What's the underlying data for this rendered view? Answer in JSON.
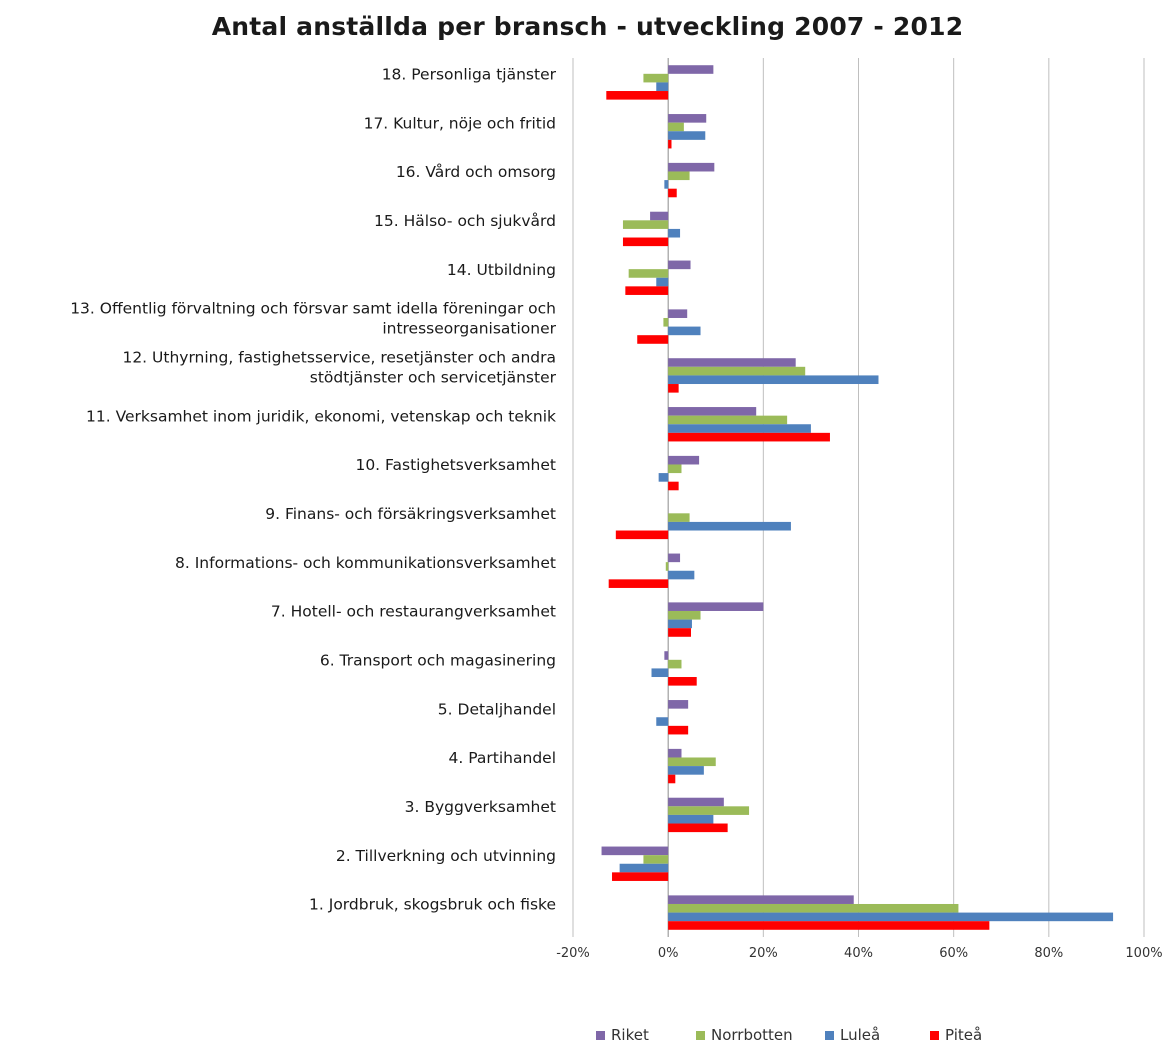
{
  "chart_data": {
    "type": "bar",
    "orientation": "horizontal",
    "title": "Antal anställda per bransch - utveckling 2007 - 2012",
    "xlabel": "",
    "ylabel": "",
    "xlim": [
      -0.2,
      1.0
    ],
    "x_ticks": [
      -0.2,
      0,
      0.2,
      0.4,
      0.6,
      0.8,
      1.0
    ],
    "x_tick_labels": [
      "-20%",
      "0%",
      "20%",
      "40%",
      "60%",
      "80%",
      "100%"
    ],
    "grid": "vertical",
    "legend_position": "bottom",
    "categories": [
      [
        "18. Personliga tjänster"
      ],
      [
        "17. Kultur, nöje och fritid"
      ],
      [
        "16. Vård och omsorg"
      ],
      [
        "15. Hälso- och sjukvård"
      ],
      [
        "14. Utbildning"
      ],
      [
        "13. Offentlig förvaltning och försvar samt idella föreningar och",
        "intresseorganisationer"
      ],
      [
        "12. Uthyrning, fastighetsservice, resetjänster och andra",
        "stödtjänster och servicetjänster"
      ],
      [
        "11. Verksamhet inom juridik, ekonomi, vetenskap och teknik"
      ],
      [
        "10. Fastighetsverksamhet"
      ],
      [
        "9. Finans- och försäkringsverksamhet"
      ],
      [
        "8. Informations- och kommunikationsverksamhet"
      ],
      [
        "7. Hotell- och restaurangverksamhet"
      ],
      [
        "6. Transport och magasinering"
      ],
      [
        "5. Detaljhandel"
      ],
      [
        "4. Partihandel"
      ],
      [
        "3. Byggverksamhet"
      ],
      [
        "2. Tillverkning och utvinning"
      ],
      [
        "1. Jordbruk, skogsbruk och fiske"
      ]
    ],
    "series": [
      {
        "name": "Riket",
        "color": "#7F67A8",
        "values": [
          0.095,
          0.08,
          0.097,
          -0.038,
          0.047,
          0.04,
          0.268,
          0.185,
          0.065,
          0.0,
          0.025,
          0.2,
          -0.008,
          0.042,
          0.028,
          0.117,
          -0.14,
          0.39
        ]
      },
      {
        "name": "Norrbotten",
        "color": "#9BBB59",
        "values": [
          -0.052,
          0.033,
          0.045,
          -0.095,
          -0.083,
          -0.01,
          0.288,
          0.25,
          0.028,
          0.045,
          -0.005,
          0.068,
          0.028,
          0.0,
          0.1,
          0.17,
          -0.052,
          0.61
        ]
      },
      {
        "name": "Luleå",
        "color": "#4F81BD",
        "values": [
          -0.025,
          0.078,
          -0.008,
          0.025,
          -0.025,
          0.068,
          0.442,
          0.3,
          -0.02,
          0.258,
          0.055,
          0.05,
          -0.035,
          -0.025,
          0.075,
          0.095,
          -0.102,
          0.935
        ]
      },
      {
        "name": "Piteå",
        "color": "#FF0000",
        "values": [
          -0.13,
          0.007,
          0.018,
          -0.095,
          -0.09,
          -0.065,
          0.022,
          0.34,
          0.022,
          -0.11,
          -0.125,
          0.048,
          0.06,
          0.042,
          0.015,
          0.125,
          -0.118,
          0.675
        ]
      }
    ]
  }
}
